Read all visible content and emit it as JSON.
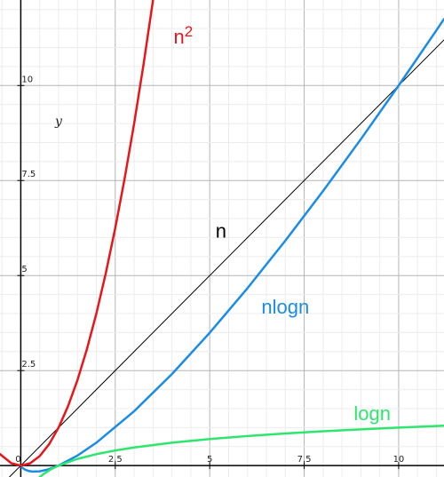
{
  "chart_data": {
    "type": "line",
    "title": "",
    "xlabel": "",
    "ylabel": "y",
    "xlim": [
      -0.55,
      11.2
    ],
    "ylim": [
      -0.3,
      12.25
    ],
    "grid": true,
    "x_ticks": [
      2.5,
      5,
      7.5,
      10
    ],
    "x_tick_labels": [
      "2.5",
      "5",
      "7.5",
      "10"
    ],
    "y_ticks": [
      2.5,
      5,
      7.5,
      10
    ],
    "y_tick_labels": [
      "2.5",
      "5",
      "7.5",
      "10"
    ],
    "origin_label": "0",
    "series": [
      {
        "name": "n",
        "label_text": "n",
        "label_sup": "",
        "color": "#000000",
        "stroke_width": 1,
        "x": [
          -0.55,
          11.2
        ],
        "y": [
          -0.55,
          11.2
        ],
        "label_at": [
          5.3,
          6.0
        ]
      },
      {
        "name": "n2",
        "label_text": "n",
        "label_sup": "2",
        "color": "#e8161b",
        "stroke_width": 2.5,
        "x": [
          -0.55,
          -0.25,
          0,
          0.25,
          0.5,
          0.75,
          1,
          1.25,
          1.5,
          1.75,
          2,
          2.25,
          2.5,
          2.75,
          3,
          3.25,
          3.5
        ],
        "y": [
          0.3025,
          0.0625,
          0,
          0.0625,
          0.25,
          0.5625,
          1,
          1.5625,
          2.25,
          3.0625,
          4,
          5.0625,
          6.25,
          7.5625,
          9,
          10.5625,
          12.25
        ],
        "label_at": [
          4.3,
          11.1
        ]
      },
      {
        "name": "nlogn",
        "label_text": "nlogn",
        "label_sup": "",
        "color": "#1a8ce8",
        "stroke_width": 2.5,
        "x": [
          0.03,
          0.1,
          0.2,
          0.3,
          0.5,
          0.7,
          1,
          1.5,
          2,
          3,
          4,
          5,
          6,
          7,
          8,
          9,
          10,
          11,
          11.2
        ],
        "y": [
          -0.046,
          -0.1,
          -0.14,
          -0.157,
          -0.151,
          -0.108,
          0,
          0.264,
          0.602,
          1.431,
          2.408,
          3.495,
          4.669,
          5.916,
          7.225,
          8.588,
          10,
          11.455,
          11.75
        ],
        "label_at": [
          7.0,
          4.0
        ]
      },
      {
        "name": "logn",
        "label_text": "logn",
        "label_sup": "",
        "color": "#2ee66e",
        "stroke_width": 2.5,
        "x": [
          0.45,
          0.6,
          0.8,
          1,
          1.5,
          2,
          2.5,
          3,
          4,
          5,
          6,
          7,
          8,
          9,
          10,
          11,
          11.2
        ],
        "y": [
          -0.347,
          -0.222,
          -0.097,
          0,
          0.176,
          0.301,
          0.398,
          0.477,
          0.602,
          0.699,
          0.778,
          0.845,
          0.903,
          0.954,
          1,
          1.041,
          1.049
        ],
        "label_at": [
          9.3,
          1.2
        ]
      }
    ]
  }
}
